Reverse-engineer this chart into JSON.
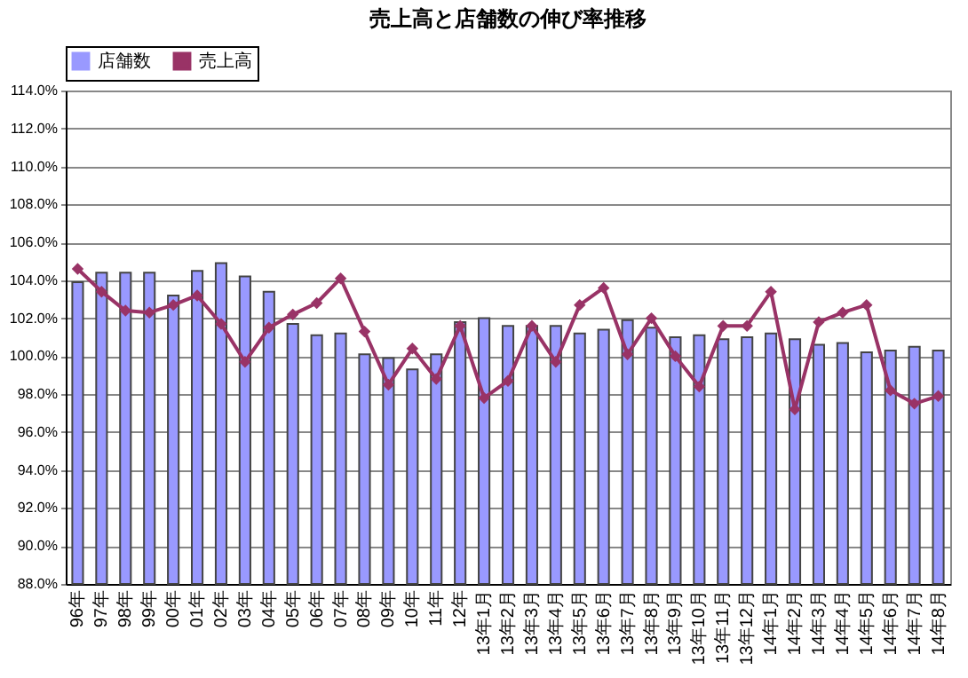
{
  "chart_data": {
    "type": "bar",
    "title": "売上高と店舗数の伸び率推移",
    "categories": [
      "96年",
      "97年",
      "98年",
      "99年",
      "00年",
      "01年",
      "02年",
      "03年",
      "04年",
      "05年",
      "06年",
      "07年",
      "08年",
      "09年",
      "10年",
      "11年",
      "12年",
      "13年1月",
      "13年2月",
      "13年3月",
      "13年4月",
      "13年5月",
      "13年6月",
      "13年7月",
      "13年8月",
      "13年9月",
      "13年10月",
      "13年11月",
      "13年12月",
      "14年1月",
      "14年2月",
      "14年3月",
      "14年4月",
      "14年5月",
      "14年6月",
      "14年7月",
      "14年8月"
    ],
    "series": [
      {
        "name": "店舗数",
        "color": "#9999ff",
        "values": [
          103.9,
          104.4,
          104.4,
          104.4,
          103.2,
          104.5,
          104.9,
          104.2,
          103.4,
          101.7,
          101.1,
          101.2,
          100.1,
          99.9,
          99.3,
          100.1,
          101.8,
          102.0,
          101.6,
          101.6,
          101.6,
          101.2,
          101.4,
          101.9,
          101.5,
          101.0,
          101.1,
          100.9,
          101.0,
          101.2,
          100.9,
          100.6,
          100.7,
          100.2,
          100.3,
          100.5,
          100.3
        ]
      },
      {
        "name": "売上高",
        "type": "line",
        "color": "#993366",
        "marker": "diamond",
        "values": [
          104.6,
          103.4,
          102.4,
          102.3,
          102.7,
          103.2,
          101.7,
          99.7,
          101.5,
          102.2,
          102.8,
          104.1,
          101.3,
          98.5,
          100.4,
          98.8,
          101.6,
          97.8,
          98.7,
          101.6,
          99.7,
          102.7,
          103.6,
          100.1,
          102.0,
          100.0,
          98.4,
          101.6,
          101.6,
          103.4,
          97.2,
          101.8,
          102.3,
          102.7,
          98.2,
          97.5,
          97.9
        ]
      }
    ],
    "ylim": [
      88,
      114
    ],
    "yticks": [
      {
        "value": 88,
        "label": "88.0%"
      },
      {
        "value": 90,
        "label": "90.0%"
      },
      {
        "value": 92,
        "label": "92.0%"
      },
      {
        "value": 94,
        "label": "94.0%"
      },
      {
        "value": 96,
        "label": "96.0%"
      },
      {
        "value": 98,
        "label": "98.0%"
      },
      {
        "value": 100,
        "label": "100.0%"
      },
      {
        "value": 102,
        "label": "102.0%"
      },
      {
        "value": 104,
        "label": "104.0%"
      },
      {
        "value": 106,
        "label": "106.0%"
      },
      {
        "value": 108,
        "label": "108.0%"
      },
      {
        "value": 110,
        "label": "110.0%"
      },
      {
        "value": 112,
        "label": "112.0%"
      },
      {
        "value": 114,
        "label": "114.0%"
      }
    ],
    "grid": "y",
    "legend": "top"
  }
}
